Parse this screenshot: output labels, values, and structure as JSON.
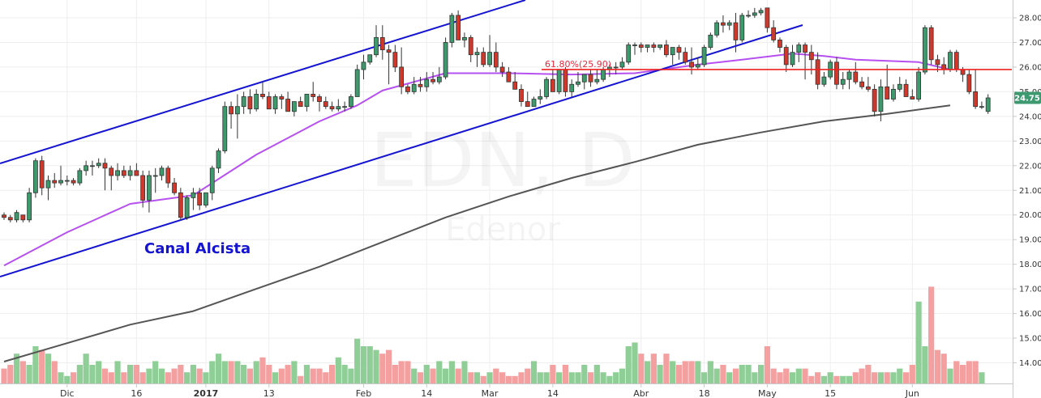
{
  "chart_data": {
    "type": "candlestick",
    "watermark": {
      "symbol": "EDN, D",
      "name": "Edenor"
    },
    "annotation": "Canal Alcista",
    "fib_label": "61.80%(25.90)",
    "fib_level": 25.9,
    "last_price_label": "24.75",
    "last_price": 24.75,
    "y_axis": {
      "min": 13.4,
      "max": 28.4,
      "ticks": [
        "14.00",
        "15.00",
        "16.00",
        "17.00",
        "18.00",
        "19.00",
        "20.00",
        "21.00",
        "22.00",
        "23.00",
        "24.00",
        "25.00",
        "26.00",
        "27.00",
        "28.00"
      ]
    },
    "x_axis": {
      "tick_labels": [
        "Dic",
        "16",
        "2017",
        "13",
        "Feb",
        "14",
        "Mar",
        "14",
        "Abr",
        "18",
        "May",
        "15",
        "Jun"
      ],
      "tick_bar_index": [
        10,
        21,
        32,
        42,
        57,
        67,
        77,
        87,
        101,
        111,
        121,
        131,
        144
      ]
    },
    "series": [
      {
        "name": "",
        "kind": "ohlc",
        "values": [
          [
            20.0,
            20.1,
            19.8,
            19.9
          ],
          [
            19.9,
            20.0,
            19.7,
            19.8
          ],
          [
            19.8,
            20.2,
            19.7,
            20.1
          ],
          [
            20.0,
            20.0,
            19.7,
            19.8
          ],
          [
            19.8,
            21.1,
            19.7,
            20.9
          ],
          [
            20.9,
            22.3,
            20.7,
            22.2
          ],
          [
            22.2,
            22.4,
            20.8,
            21.1
          ],
          [
            21.1,
            21.6,
            20.6,
            21.4
          ],
          [
            21.4,
            21.7,
            21.1,
            21.3
          ],
          [
            21.3,
            22.0,
            21.2,
            21.4
          ],
          [
            21.4,
            21.6,
            21.2,
            21.4
          ],
          [
            21.4,
            21.5,
            21.2,
            21.3
          ],
          [
            21.3,
            21.9,
            21.2,
            21.8
          ],
          [
            21.8,
            22.2,
            21.6,
            22.0
          ],
          [
            22.0,
            22.2,
            21.6,
            22.0
          ],
          [
            22.0,
            22.3,
            21.9,
            22.1
          ],
          [
            22.1,
            22.3,
            21.0,
            21.9
          ],
          [
            21.9,
            22.0,
            21.0,
            21.6
          ],
          [
            21.6,
            22.1,
            21.4,
            21.8
          ],
          [
            21.8,
            22.0,
            21.5,
            21.6
          ],
          [
            21.6,
            22.0,
            21.4,
            21.8
          ],
          [
            21.8,
            22.1,
            21.6,
            21.6
          ],
          [
            21.6,
            21.8,
            20.3,
            20.6
          ],
          [
            20.6,
            21.8,
            20.1,
            21.6
          ],
          [
            21.6,
            21.9,
            20.9,
            21.6
          ],
          [
            21.6,
            22.0,
            21.4,
            21.9
          ],
          [
            21.9,
            22.0,
            21.1,
            21.3
          ],
          [
            21.3,
            21.5,
            20.8,
            20.9
          ],
          [
            20.9,
            21.1,
            19.8,
            19.9
          ],
          [
            19.9,
            20.8,
            19.8,
            20.7
          ],
          [
            20.7,
            21.1,
            20.2,
            20.9
          ],
          [
            20.9,
            21.1,
            20.2,
            20.4
          ],
          [
            20.4,
            20.9,
            20.3,
            20.9
          ],
          [
            20.9,
            22.0,
            20.6,
            21.9
          ],
          [
            21.9,
            22.7,
            21.7,
            22.6
          ],
          [
            22.6,
            24.6,
            22.5,
            24.4
          ],
          [
            24.4,
            24.6,
            23.5,
            24.1
          ],
          [
            24.1,
            24.9,
            23.1,
            24.4
          ],
          [
            24.4,
            25.0,
            24.1,
            24.8
          ],
          [
            24.8,
            25.1,
            24.1,
            24.3
          ],
          [
            24.3,
            25.1,
            24.2,
            24.9
          ],
          [
            24.9,
            25.4,
            24.7,
            24.8
          ],
          [
            24.8,
            25.0,
            24.4,
            24.3
          ],
          [
            24.3,
            24.9,
            24.1,
            24.8
          ],
          [
            24.8,
            24.9,
            24.3,
            24.7
          ],
          [
            24.7,
            25.0,
            24.5,
            24.2
          ],
          [
            24.2,
            24.6,
            24.0,
            24.6
          ],
          [
            24.6,
            24.8,
            24.4,
            24.4
          ],
          [
            24.4,
            24.9,
            24.2,
            24.9
          ],
          [
            24.9,
            25.4,
            24.6,
            24.8
          ],
          [
            24.8,
            24.9,
            24.2,
            24.6
          ],
          [
            24.6,
            24.8,
            24.3,
            24.4
          ],
          [
            24.4,
            24.6,
            24.2,
            24.3
          ],
          [
            24.3,
            24.7,
            24.2,
            24.4
          ],
          [
            24.4,
            24.6,
            24.2,
            24.4
          ],
          [
            24.4,
            24.9,
            24.3,
            24.8
          ],
          [
            24.8,
            26.1,
            24.8,
            25.9
          ],
          [
            25.9,
            26.5,
            25.5,
            26.2
          ],
          [
            26.2,
            26.5,
            26.1,
            26.5
          ],
          [
            26.5,
            27.7,
            26.4,
            27.2
          ],
          [
            27.2,
            27.7,
            26.3,
            26.7
          ],
          [
            26.7,
            26.9,
            25.3,
            26.6
          ],
          [
            26.6,
            26.9,
            25.8,
            26.0
          ],
          [
            26.0,
            26.8,
            24.9,
            25.2
          ],
          [
            25.2,
            25.3,
            24.9,
            25.0
          ],
          [
            25.0,
            25.6,
            24.9,
            25.3
          ],
          [
            25.3,
            25.6,
            25.0,
            25.2
          ],
          [
            25.2,
            25.8,
            25.0,
            25.5
          ],
          [
            25.5,
            25.8,
            25.3,
            25.4
          ],
          [
            25.4,
            26.0,
            25.3,
            25.6
          ],
          [
            25.6,
            27.2,
            25.5,
            27.0
          ],
          [
            27.0,
            28.2,
            26.8,
            28.1
          ],
          [
            28.1,
            28.3,
            27.4,
            27.1
          ],
          [
            27.1,
            27.4,
            26.8,
            27.2
          ],
          [
            27.2,
            27.3,
            26.2,
            26.5
          ],
          [
            26.5,
            26.8,
            26.0,
            26.6
          ],
          [
            26.6,
            26.8,
            26.0,
            26.1
          ],
          [
            26.1,
            27.3,
            26.0,
            26.6
          ],
          [
            26.6,
            27.0,
            25.8,
            26.0
          ],
          [
            26.0,
            26.2,
            25.6,
            25.8
          ],
          [
            25.8,
            26.0,
            25.5,
            25.4
          ],
          [
            25.4,
            25.8,
            25.1,
            25.1
          ],
          [
            25.1,
            25.3,
            24.4,
            24.6
          ],
          [
            24.6,
            25.0,
            24.4,
            24.4
          ],
          [
            24.4,
            24.8,
            24.4,
            24.7
          ],
          [
            24.7,
            25.1,
            24.5,
            24.8
          ],
          [
            24.8,
            25.6,
            24.7,
            25.5
          ],
          [
            25.5,
            25.9,
            25.1,
            25.0
          ],
          [
            25.0,
            25.9,
            24.9,
            25.9
          ],
          [
            25.9,
            26.0,
            24.8,
            25.0
          ],
          [
            25.0,
            25.5,
            24.8,
            25.3
          ],
          [
            25.3,
            25.8,
            25.2,
            25.4
          ],
          [
            25.4,
            25.7,
            25.1,
            25.7
          ],
          [
            25.7,
            25.9,
            25.2,
            25.4
          ],
          [
            25.4,
            25.9,
            25.3,
            25.5
          ],
          [
            25.5,
            26.0,
            25.4,
            25.9
          ],
          [
            25.9,
            26.1,
            25.6,
            26.0
          ],
          [
            26.0,
            26.2,
            25.7,
            26.0
          ],
          [
            26.0,
            26.4,
            25.9,
            26.2
          ],
          [
            26.2,
            27.0,
            26.1,
            26.9
          ],
          [
            26.9,
            27.0,
            26.5,
            26.9
          ],
          [
            26.9,
            27.0,
            26.6,
            26.8
          ],
          [
            26.8,
            26.9,
            26.6,
            26.9
          ],
          [
            26.9,
            27.0,
            26.6,
            26.8
          ],
          [
            26.8,
            26.9,
            26.7,
            26.9
          ],
          [
            26.9,
            27.1,
            26.4,
            26.5
          ],
          [
            26.5,
            26.8,
            26.1,
            26.8
          ],
          [
            26.8,
            26.9,
            26.3,
            26.6
          ],
          [
            26.6,
            26.8,
            26.1,
            26.2
          ],
          [
            26.2,
            26.8,
            25.7,
            26.0
          ],
          [
            26.0,
            26.4,
            25.9,
            26.1
          ],
          [
            26.1,
            26.9,
            26.0,
            26.8
          ],
          [
            26.8,
            27.4,
            26.7,
            27.3
          ],
          [
            27.3,
            27.9,
            27.2,
            27.8
          ],
          [
            27.8,
            28.1,
            27.4,
            27.7
          ],
          [
            27.7,
            27.9,
            27.5,
            27.8
          ],
          [
            27.8,
            28.2,
            26.6,
            27.1
          ],
          [
            27.1,
            28.2,
            27.0,
            28.1
          ],
          [
            28.1,
            28.3,
            28.0,
            28.1
          ],
          [
            28.1,
            28.4,
            28.0,
            28.2
          ],
          [
            28.2,
            28.4,
            28.1,
            28.3
          ],
          [
            28.4,
            28.4,
            27.4,
            27.6
          ],
          [
            27.6,
            27.9,
            27.0,
            27.1
          ],
          [
            27.1,
            27.2,
            26.6,
            26.8
          ],
          [
            26.8,
            26.9,
            25.8,
            26.1
          ],
          [
            26.1,
            26.9,
            26.0,
            26.6
          ],
          [
            26.6,
            27.0,
            26.2,
            26.9
          ],
          [
            26.9,
            27.0,
            25.5,
            26.6
          ],
          [
            26.6,
            26.9,
            25.7,
            26.3
          ],
          [
            26.3,
            26.6,
            25.1,
            25.3
          ],
          [
            25.3,
            25.8,
            25.2,
            25.6
          ],
          [
            25.6,
            26.3,
            25.5,
            26.2
          ],
          [
            26.2,
            26.4,
            25.1,
            25.3
          ],
          [
            25.3,
            25.8,
            25.1,
            25.5
          ],
          [
            25.5,
            25.9,
            25.1,
            25.8
          ],
          [
            25.8,
            26.2,
            25.3,
            25.4
          ],
          [
            25.4,
            25.6,
            25.1,
            25.2
          ],
          [
            25.2,
            25.6,
            25.0,
            25.1
          ],
          [
            25.1,
            25.3,
            24.0,
            24.2
          ],
          [
            24.2,
            25.5,
            23.8,
            25.2
          ],
          [
            25.2,
            26.1,
            24.9,
            24.7
          ],
          [
            24.7,
            25.3,
            24.6,
            25.1
          ],
          [
            25.1,
            25.6,
            25.0,
            25.3
          ],
          [
            25.3,
            25.5,
            24.8,
            24.8
          ],
          [
            24.8,
            25.1,
            24.8,
            24.7
          ],
          [
            24.7,
            26.0,
            24.6,
            25.8
          ],
          [
            25.8,
            27.7,
            25.7,
            27.6
          ],
          [
            27.6,
            27.7,
            26.1,
            26.3
          ],
          [
            26.3,
            26.5,
            25.8,
            26.1
          ],
          [
            26.1,
            26.4,
            25.7,
            25.9
          ],
          [
            25.9,
            26.7,
            25.8,
            26.6
          ],
          [
            26.6,
            26.7,
            25.8,
            25.9
          ],
          [
            25.9,
            26.0,
            25.4,
            25.7
          ],
          [
            25.7,
            25.9,
            24.9,
            25.0
          ],
          [
            25.0,
            25.9,
            24.3,
            24.4
          ],
          [
            24.4,
            24.6,
            24.3,
            24.4
          ],
          [
            24.2,
            24.9,
            24.1,
            24.75
          ]
        ]
      },
      {
        "name": "",
        "kind": "sma",
        "color": "#b650f0",
        "x": [
          0,
          10,
          20,
          30,
          40,
          50,
          56,
          60,
          70,
          80,
          90,
          100,
          110,
          117,
          125,
          130,
          135,
          140,
          145,
          150
        ],
        "values": [
          17.95,
          19.3,
          20.45,
          20.8,
          22.45,
          23.8,
          24.45,
          25.05,
          25.75,
          25.75,
          25.7,
          25.75,
          26.1,
          26.3,
          26.55,
          26.45,
          26.3,
          26.25,
          26.2,
          25.9
        ]
      },
      {
        "name": "",
        "kind": "sma",
        "color": "#555555",
        "x": [
          0,
          10,
          20,
          30,
          40,
          50,
          60,
          70,
          80,
          90,
          100,
          110,
          120,
          130,
          140,
          150
        ],
        "values": [
          14.05,
          14.8,
          15.55,
          16.1,
          17.0,
          17.9,
          18.9,
          19.9,
          20.75,
          21.5,
          22.15,
          22.85,
          23.35,
          23.8,
          24.1,
          24.45
        ]
      },
      {
        "name": "",
        "kind": "volume",
        "up_color": "#8fcf97",
        "down_color": "#f4a0a0",
        "values": [
          4,
          5,
          8,
          6,
          5,
          10,
          9,
          8,
          6,
          3,
          2,
          3,
          5,
          8,
          5,
          6,
          4,
          3,
          6,
          3,
          5,
          5,
          3,
          4,
          6,
          4,
          3,
          4,
          5,
          3,
          5,
          4,
          3,
          6,
          8,
          6,
          6,
          6,
          5,
          4,
          6,
          7,
          5,
          3,
          4,
          5,
          6,
          2,
          5,
          4,
          4,
          3,
          5,
          7,
          5,
          4,
          12,
          10,
          10,
          9,
          8,
          9,
          5,
          6,
          6,
          4,
          3,
          5,
          4,
          6,
          4,
          6,
          4,
          6,
          3,
          3,
          2,
          3,
          4,
          3,
          2,
          2,
          3,
          4,
          6,
          3,
          3,
          5,
          3,
          5,
          3,
          3,
          5,
          3,
          5,
          3,
          2,
          3,
          4,
          10,
          11,
          8,
          6,
          8,
          5,
          8,
          6,
          5,
          6,
          6,
          6,
          3,
          6,
          4,
          5,
          3,
          4,
          5,
          5,
          3,
          5,
          10,
          4,
          3,
          4,
          3,
          4,
          4,
          2,
          3,
          2,
          3,
          2,
          2,
          2,
          3,
          4,
          5,
          3,
          3,
          3,
          3,
          4,
          3,
          5,
          22,
          10,
          26,
          9,
          8,
          4,
          6,
          5,
          6,
          6,
          3
        ]
      }
    ]
  }
}
